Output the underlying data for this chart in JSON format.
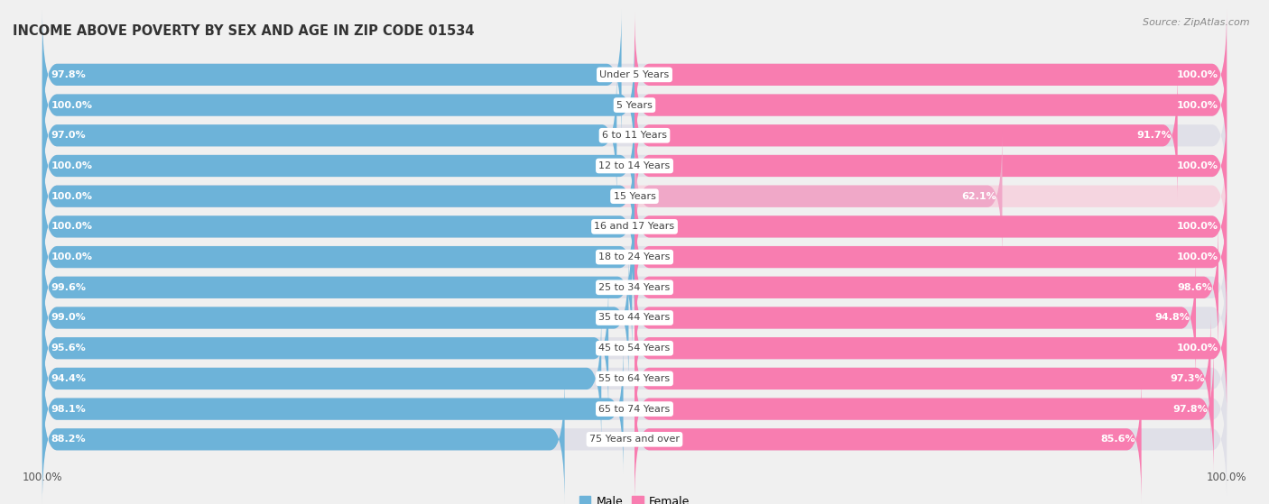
{
  "title": "INCOME ABOVE POVERTY BY SEX AND AGE IN ZIP CODE 01534",
  "source": "Source: ZipAtlas.com",
  "categories": [
    "Under 5 Years",
    "5 Years",
    "6 to 11 Years",
    "12 to 14 Years",
    "15 Years",
    "16 and 17 Years",
    "18 to 24 Years",
    "25 to 34 Years",
    "35 to 44 Years",
    "45 to 54 Years",
    "55 to 64 Years",
    "65 to 74 Years",
    "75 Years and over"
  ],
  "male": [
    97.8,
    100.0,
    97.0,
    100.0,
    100.0,
    100.0,
    100.0,
    99.6,
    99.0,
    95.6,
    94.4,
    98.1,
    88.2
  ],
  "female": [
    100.0,
    100.0,
    91.7,
    100.0,
    62.1,
    100.0,
    100.0,
    98.6,
    94.8,
    100.0,
    97.3,
    97.8,
    85.6
  ],
  "male_color": "#6db3d9",
  "female_color": "#f87db0",
  "male_label": "Male",
  "female_label": "Female",
  "background_color": "#f0f0f0",
  "bar_bg_color": "#e0e0e8",
  "bar_bg_color_15": "#f5d5e0",
  "label_color_white": "#ffffff",
  "title_fontsize": 10.5,
  "label_fontsize": 8,
  "category_fontsize": 8,
  "legend_fontsize": 9,
  "source_fontsize": 8
}
